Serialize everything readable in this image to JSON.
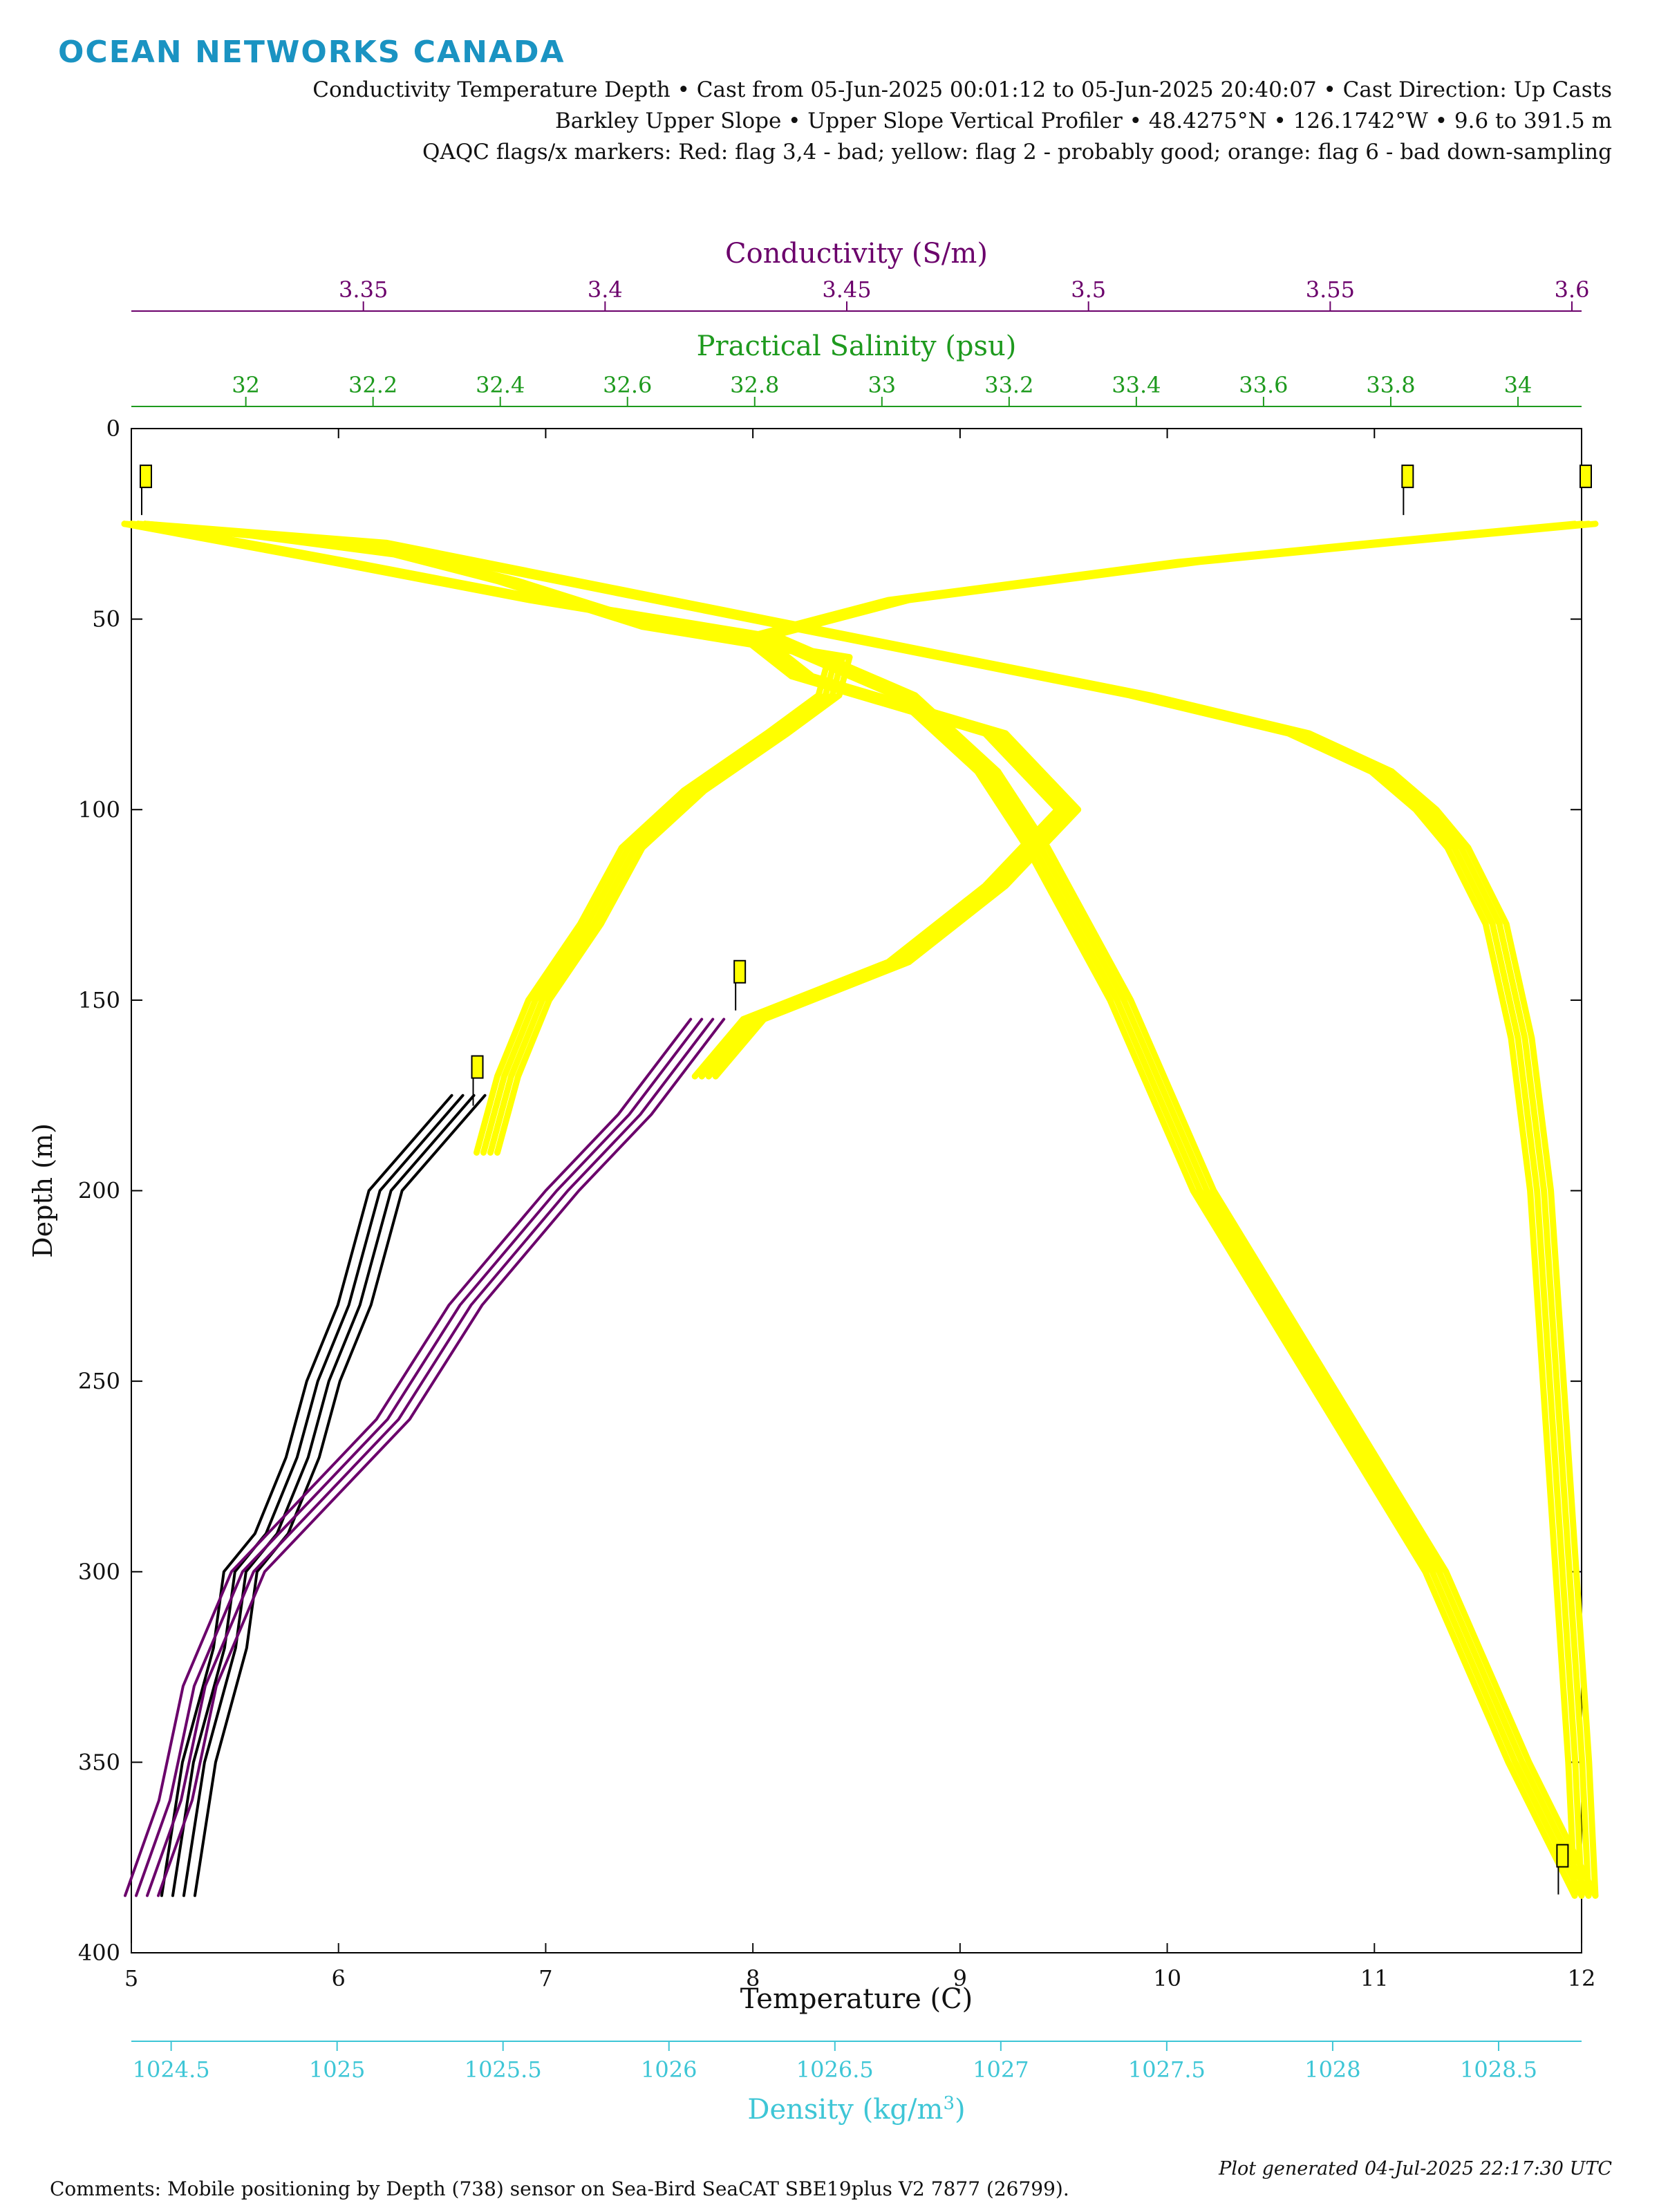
{
  "header": {
    "logo": "OCEAN NETWORKS CANADA",
    "line1": "Conductivity Temperature Depth • Cast from 05-Jun-2025 00:01:12 to 05-Jun-2025 20:40:07 • Cast Direction: Up Casts",
    "line2": "Barkley Upper Slope • Upper Slope Vertical Profiler • 48.4275°N • 126.1742°W • 9.6 to 391.5 m",
    "line3": "QAQC flags/x markers: Red: flag 3,4 - bad; yellow: flag 2 - probably good; orange: flag 6 - bad down-sampling"
  },
  "footer": {
    "comments": "Comments: Mobile positioning by Depth (738) sensor on Sea-Bird SeaCAT SBE19plus V2 7877 (26799).",
    "generated": "Plot generated 04-Jul-2025 22:17:30 UTC"
  },
  "colors": {
    "temperature": "#000000",
    "conductivity": "#6b006b",
    "salinity": "#1e9a1e",
    "density": "#3ec6d6",
    "flag_probably_good": "#ffff00"
  },
  "chart_data": {
    "type": "line",
    "y_axis": {
      "label": "Depth (m)",
      "lim": [
        0,
        400
      ],
      "ticks": [
        0,
        50,
        100,
        150,
        200,
        250,
        300,
        350,
        400
      ],
      "reversed": true
    },
    "x_axes": [
      {
        "id": "temperature",
        "label": "Temperature (C)",
        "position": "bottom",
        "lim": [
          5,
          12
        ],
        "ticks": [
          5,
          6,
          7,
          8,
          9,
          10,
          11,
          12
        ],
        "tick_labels": [
          "5",
          "6",
          "7",
          "8",
          "9",
          "10",
          "11",
          "12"
        ]
      },
      {
        "id": "density",
        "label_main": "Density (kg/m",
        "label_sup": "3",
        "label_end": ")",
        "position": "below",
        "lim": [
          1024.38,
          1028.75
        ],
        "ticks": [
          1024.5,
          1025,
          1025.5,
          1026,
          1026.5,
          1027,
          1027.5,
          1028,
          1028.5
        ],
        "tick_labels": [
          "1024.5",
          "1025",
          "1025.5",
          "1026",
          "1026.5",
          "1027",
          "1027.5",
          "1028",
          "1028.5"
        ]
      },
      {
        "id": "conductivity",
        "label": "Conductivity (S/m)",
        "position": "top",
        "lim": [
          3.302,
          3.602
        ],
        "ticks": [
          3.35,
          3.4,
          3.45,
          3.5,
          3.55,
          3.6
        ],
        "tick_labels": [
          "3.35",
          "3.4",
          "3.45",
          "3.5",
          "3.55",
          "3.6"
        ]
      },
      {
        "id": "salinity",
        "label": "Practical Salinity (psu)",
        "position": "top-inner",
        "lim": [
          31.82,
          34.1
        ],
        "ticks": [
          32,
          32.2,
          32.4,
          32.6,
          32.8,
          33,
          33.2,
          33.4,
          33.6,
          33.8,
          34
        ],
        "tick_labels": [
          "32",
          "32.2",
          "32.4",
          "32.6",
          "32.8",
          "33",
          "33.2",
          "33.4",
          "33.6",
          "33.8",
          "34"
        ]
      }
    ],
    "series": [
      {
        "variable": "temperature",
        "flag": "probably good",
        "values_x_units": "C",
        "depth": [
          25,
          28,
          33,
          40,
          52,
          60,
          70,
          80,
          95,
          110,
          130,
          150,
          170,
          190
        ],
        "x": [
          5.0,
          5.6,
          6.3,
          6.8,
          7.5,
          8.4,
          8.35,
          8.1,
          7.7,
          7.4,
          7.2,
          6.95,
          6.8,
          6.7
        ]
      },
      {
        "variable": "temperature",
        "flag": "none",
        "depth": [
          175,
          200,
          230,
          250,
          270,
          290,
          300,
          320,
          350,
          385
        ],
        "x": [
          6.6,
          6.2,
          6.05,
          5.9,
          5.8,
          5.65,
          5.5,
          5.45,
          5.3,
          5.2
        ]
      },
      {
        "variable": "conductivity",
        "flag": "probably good",
        "values_x_units": "S/m",
        "depth": [
          25,
          30,
          35,
          45,
          55,
          65,
          80,
          100,
          120,
          140,
          155,
          170
        ],
        "x": [
          3.602,
          3.56,
          3.52,
          3.46,
          3.43,
          3.44,
          3.48,
          3.495,
          3.48,
          3.46,
          3.43,
          3.42
        ]
      },
      {
        "variable": "conductivity",
        "flag": "none",
        "depth": [
          155,
          180,
          200,
          230,
          260,
          280,
          300,
          330,
          360,
          385
        ],
        "x": [
          3.42,
          3.405,
          3.39,
          3.37,
          3.355,
          3.34,
          3.325,
          3.315,
          3.31,
          3.303
        ]
      },
      {
        "variable": "salinity",
        "flag": "probably good",
        "values_x_units": "psu",
        "depth": [
          25,
          30,
          40,
          50,
          60,
          70,
          80,
          90,
          100,
          110,
          130,
          160,
          200,
          250,
          300,
          350,
          385
        ],
        "x": [
          31.82,
          32.2,
          32.5,
          32.8,
          33.1,
          33.4,
          33.65,
          33.78,
          33.85,
          33.9,
          33.96,
          34.0,
          34.03,
          34.05,
          34.07,
          34.09,
          34.1
        ]
      },
      {
        "variable": "density",
        "flag": "probably good",
        "values_x_units": "kg/m3",
        "depth": [
          25,
          35,
          45,
          55,
          70,
          90,
          110,
          150,
          200,
          250,
          300,
          350,
          385
        ],
        "x": [
          1024.38,
          1025.0,
          1025.6,
          1026.3,
          1026.7,
          1026.95,
          1027.1,
          1027.35,
          1027.6,
          1027.95,
          1028.3,
          1028.55,
          1028.75
        ]
      }
    ],
    "flag_markers": [
      {
        "variable": "temperature",
        "depth": 10,
        "x": 5.05
      },
      {
        "variable": "salinity",
        "depth": 10,
        "x": 33.82
      },
      {
        "variable": "conductivity",
        "depth": 10,
        "x": 3.602
      },
      {
        "variable": "conductivity",
        "depth": 140,
        "x": 3.427
      },
      {
        "variable": "temperature",
        "depth": 165,
        "x": 6.65
      },
      {
        "variable": "density",
        "depth": 372,
        "x": 1028.68
      }
    ],
    "grid": false
  }
}
